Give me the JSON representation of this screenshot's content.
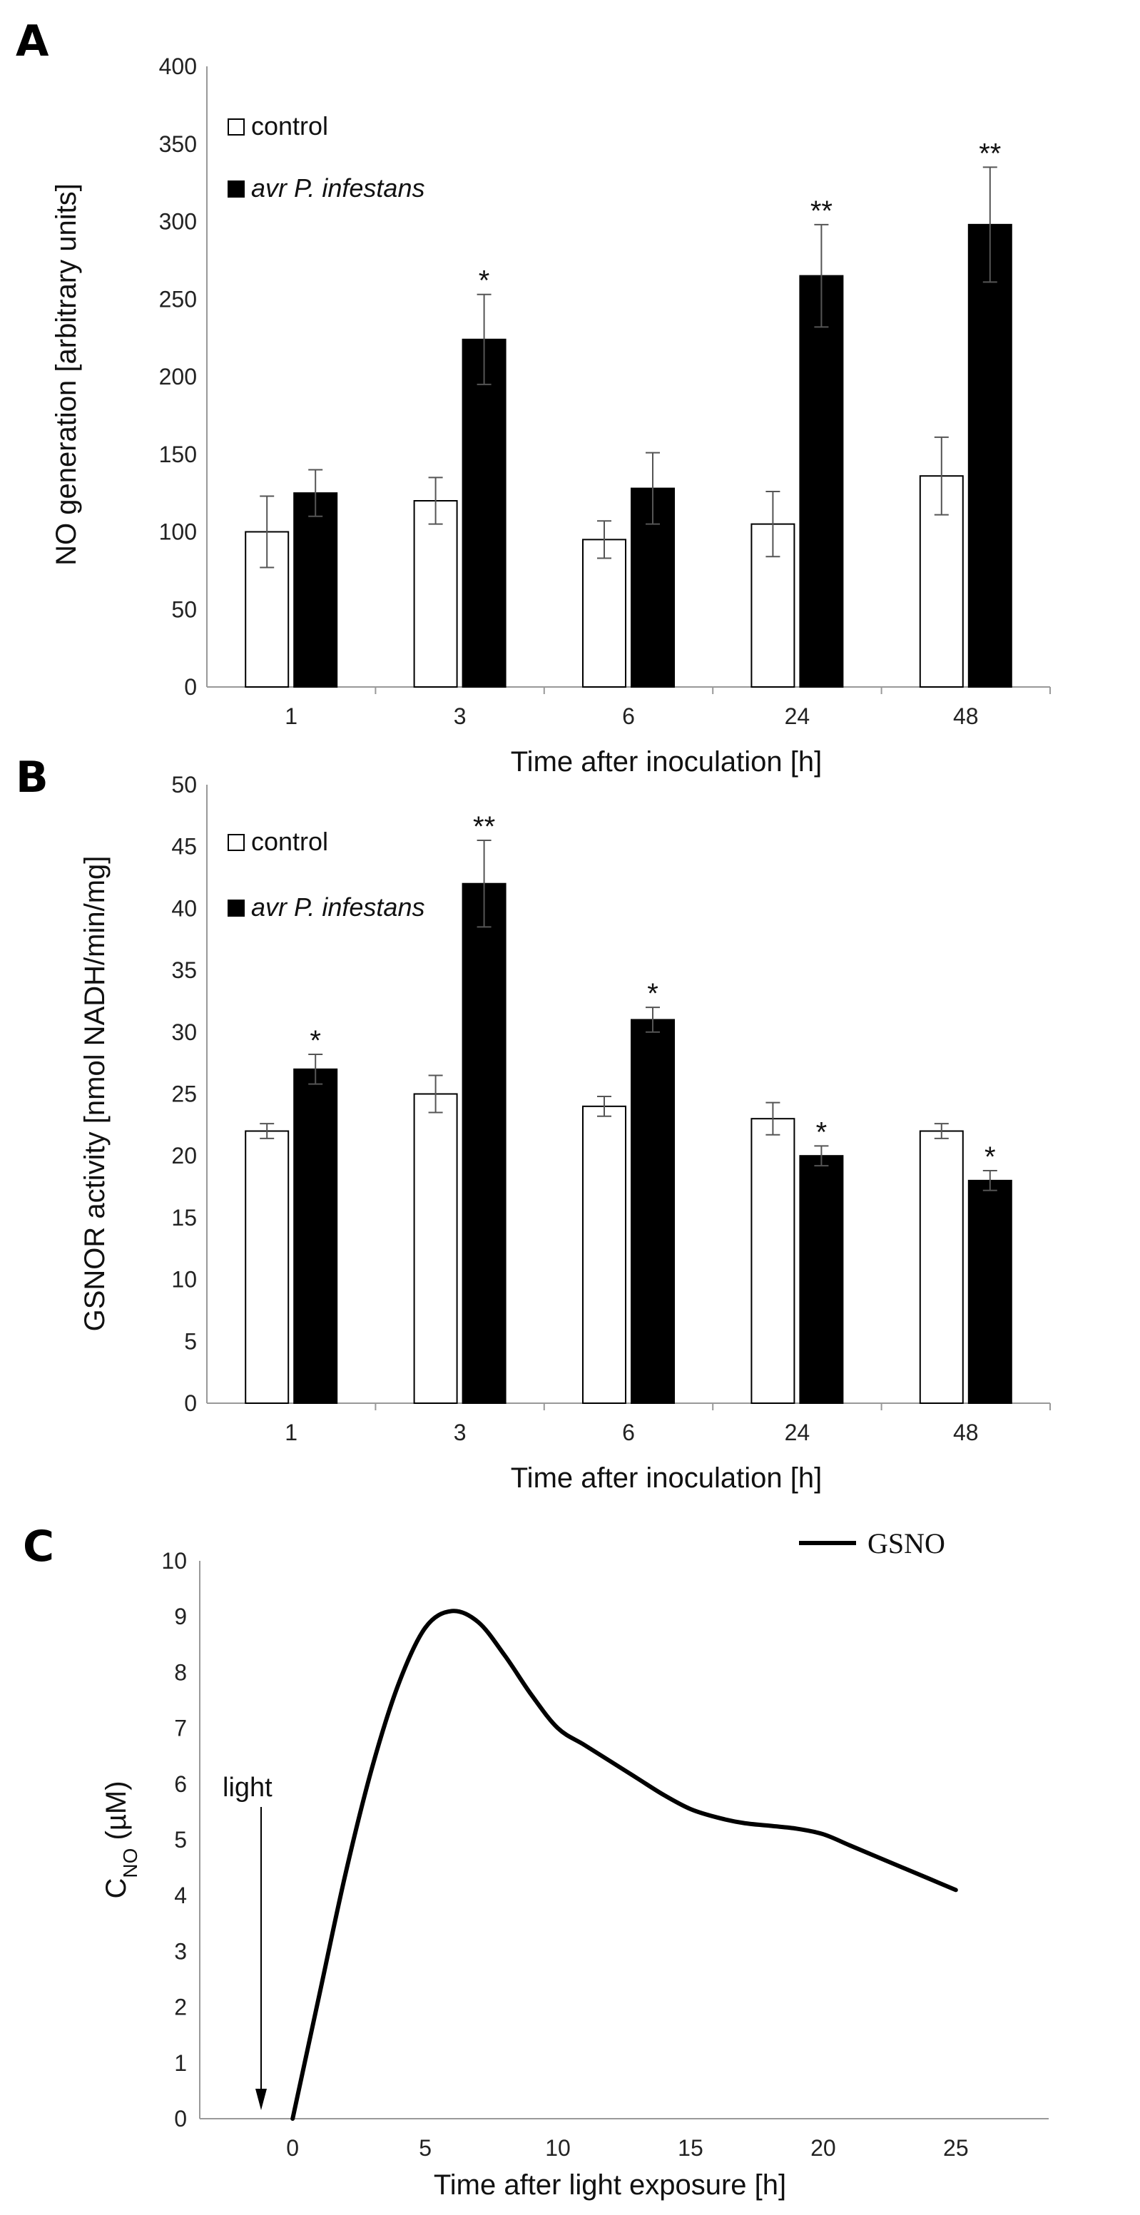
{
  "chart_data": [
    {
      "panel": "A",
      "type": "bar",
      "categories": [
        "1",
        "3",
        "6",
        "24",
        "48"
      ],
      "series": [
        {
          "name": "control",
          "values": [
            100,
            120,
            95,
            105,
            136
          ],
          "errors": [
            23,
            15,
            12,
            21,
            25
          ],
          "color": "#ffffff"
        },
        {
          "name": "avr P. infestans",
          "values": [
            125,
            224,
            128,
            265,
            298
          ],
          "errors": [
            15,
            29,
            23,
            33,
            37
          ],
          "color": "#000000"
        }
      ],
      "significance": [
        "",
        "*",
        "",
        "**",
        "**"
      ],
      "xlabel": "Time after inoculation [h]",
      "ylabel": "NO generation [arbitrary units]",
      "ylim": [
        0,
        400
      ],
      "yticks": [
        0,
        50,
        100,
        150,
        200,
        250,
        300,
        350,
        400
      ],
      "grid": false,
      "legend_position": "top-left"
    },
    {
      "panel": "B",
      "type": "bar",
      "categories": [
        "1",
        "3",
        "6",
        "24",
        "48"
      ],
      "series": [
        {
          "name": "control",
          "values": [
            22,
            25,
            24,
            23,
            22
          ],
          "errors": [
            0.6,
            1.5,
            0.8,
            1.3,
            0.6
          ],
          "color": "#ffffff"
        },
        {
          "name": "avr P. infestans",
          "values": [
            27,
            42,
            31,
            20,
            18
          ],
          "errors": [
            1.2,
            3.5,
            1.0,
            0.8,
            0.8
          ],
          "color": "#000000"
        }
      ],
      "significance": [
        "*",
        "**",
        "*",
        "*",
        "*"
      ],
      "xlabel": "Time after inoculation [h]",
      "ylabel": "GSNOR activity [nmol NADH/min/mg]",
      "ylim": [
        0,
        50
      ],
      "yticks": [
        0,
        5,
        10,
        15,
        20,
        25,
        30,
        35,
        40,
        45,
        50
      ],
      "grid": false,
      "legend_position": "top-left"
    },
    {
      "panel": "C",
      "type": "line",
      "series": [
        {
          "name": "GSNO",
          "x": [
            0,
            1,
            2,
            3,
            4,
            5,
            6,
            7,
            8,
            9,
            10,
            11,
            12,
            13,
            14,
            15,
            16,
            17,
            18,
            19,
            20,
            21,
            22,
            23,
            24,
            25
          ],
          "y": [
            0,
            2.2,
            4.4,
            6.3,
            7.8,
            8.8,
            9.1,
            8.9,
            8.3,
            7.6,
            7.0,
            6.7,
            6.4,
            6.1,
            5.8,
            5.55,
            5.4,
            5.3,
            5.25,
            5.2,
            5.1,
            4.9,
            4.7,
            4.5,
            4.3,
            4.1
          ],
          "color": "#000000"
        }
      ],
      "xlabel": "Time after light exposure [h]",
      "ylabel_main": "C",
      "ylabel_sub": "NO",
      "ylabel_tail": " (µM)",
      "xlim": [
        -3.5,
        28.5
      ],
      "ylim": [
        0,
        10
      ],
      "xticks": [
        0,
        5,
        10,
        15,
        20,
        25
      ],
      "yticks": [
        0,
        1,
        2,
        3,
        4,
        5,
        6,
        7,
        8,
        9,
        10
      ],
      "grid": false,
      "legend_position": "right",
      "annotation": {
        "text": "light",
        "x": 0
      }
    }
  ],
  "panel_labels": [
    "A",
    "B",
    "C"
  ]
}
